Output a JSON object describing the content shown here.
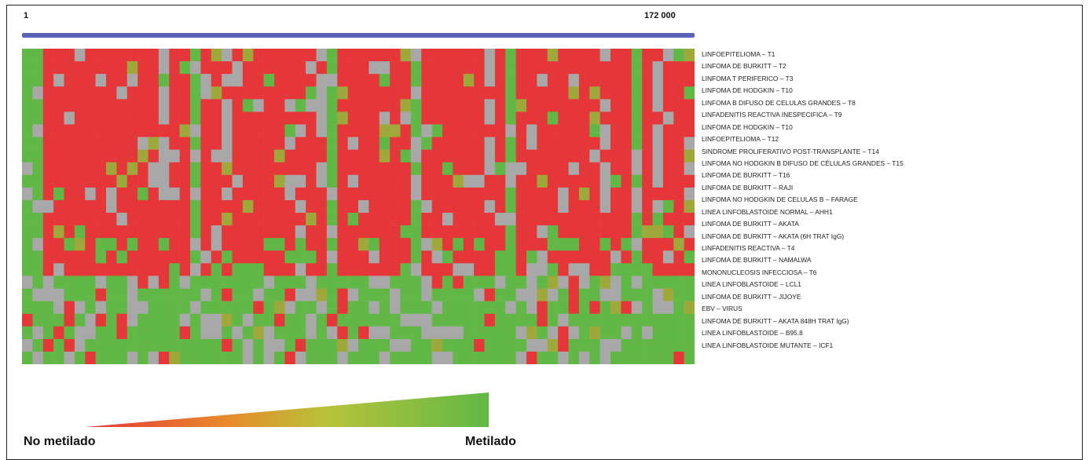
{
  "chart_data": {
    "type": "heatmap",
    "x_axis": {
      "start_label": "1",
      "end_label": "172 000"
    },
    "colors": {
      "methylated": "#61b846",
      "unmethylated": "#e5373a",
      "no_data": "#a8a8a8",
      "partial": "#9fa83a",
      "genome_bar": "#5a63b8"
    },
    "row_labels": [
      "LINFOEPITELIOMA – T1",
      "LINFOMA DE BURKITT – T2",
      "LINFOMA T PERIFERICO – T3",
      "LINFOMA DE HODGKIN – T10",
      "LINFOMA B DIFUSO DE CELULAS GRANDES – T8",
      "LINFADENITIS REACTIVA INESPECIFICA – T9",
      "LINFOMA DE HODGKIN – T10",
      "LINFOEPITELIOMA – T12",
      "SINDROME PROLIFERATIVO POST-TRANSPLANTE – T14",
      "LINFOMA NO HODGKIN B DIFUSO DE CÉLULAS GRANDES – T15",
      "LINFOMA DE BURKITT – T16",
      "LINFOMA DE BURKITT – RAJI",
      "LINFOMA NO HODGKIN DE CELULAS B – FARAGE",
      "LINEA LINFOBLASTOIDE NORMAL – AHH1",
      "LINFOMA DE BURKITT – AKATA",
      "LINFOMA DE BURKITT – AKATA (6H TRAT IgG)",
      "LINFADENITIS REACTIVA – T4",
      "LINFOMA DE BURKITT – NAMALWA",
      "MONONUCLEOSIS INFECCIOSA – T6",
      "LINEA LINFOBLASTOIDE – LCL1",
      "LINFOMA DE BURKITT – JIJOYE",
      "EBV – VIRUS",
      "LINFOMA DE BURKITT – AKATA 848H TRAT IgG)",
      "LINEA LINFOBLASTOIDE – B95.8",
      "LINEA LINFOBLASTOIDE MUTANTE – ICF1"
    ],
    "column_count": 64,
    "legend": {
      "low_label": "No metilado",
      "high_label": "Metilado"
    }
  }
}
